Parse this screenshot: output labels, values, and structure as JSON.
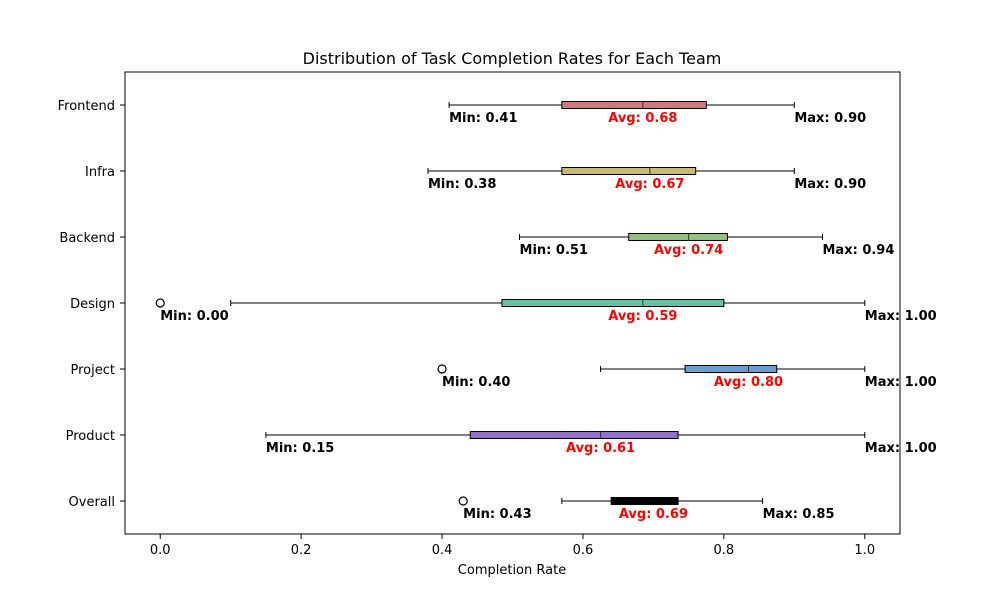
{
  "chart_data": {
    "type": "boxplot",
    "orientation": "horizontal",
    "title": "Distribution of Task Completion Rates for Each Team",
    "xlabel": "Completion Rate",
    "ylabel": "",
    "xlim": [
      -0.05,
      1.05
    ],
    "xticks": [
      "0.0",
      "0.2",
      "0.4",
      "0.6",
      "0.8",
      "1.0"
    ],
    "grid": false,
    "categories": [
      "Frontend",
      "Infra",
      "Backend",
      "Design",
      "Project",
      "Product",
      "Overall"
    ],
    "series": [
      {
        "category": "Frontend",
        "color": "#cd7b7b",
        "whisker_low": 0.41,
        "q1": 0.57,
        "median": 0.685,
        "q3": 0.775,
        "whisker_high": 0.9,
        "outliers": [],
        "min_label": "Min: 0.41",
        "avg_label": "Avg: 0.68",
        "max_label": "Max: 0.90"
      },
      {
        "category": "Infra",
        "color": "#c9b978",
        "whisker_low": 0.38,
        "q1": 0.57,
        "median": 0.695,
        "q3": 0.76,
        "whisker_high": 0.9,
        "outliers": [],
        "min_label": "Min: 0.38",
        "avg_label": "Avg: 0.67",
        "max_label": "Max: 0.90"
      },
      {
        "category": "Backend",
        "color": "#8fc47a",
        "whisker_low": 0.51,
        "q1": 0.665,
        "median": 0.75,
        "q3": 0.805,
        "whisker_high": 0.94,
        "outliers": [],
        "min_label": "Min: 0.51",
        "avg_label": "Avg: 0.74",
        "max_label": "Max: 0.94"
      },
      {
        "category": "Design",
        "color": "#66c2a5",
        "whisker_low": 0.1,
        "q1": 0.485,
        "median": 0.685,
        "q3": 0.8,
        "whisker_high": 1.0,
        "outliers": [
          0.0
        ],
        "min_label": "Min: 0.00",
        "avg_label": "Avg: 0.59",
        "max_label": "Max: 1.00"
      },
      {
        "category": "Project",
        "color": "#6a9dd0",
        "whisker_low": 0.625,
        "q1": 0.745,
        "median": 0.835,
        "q3": 0.875,
        "whisker_high": 1.0,
        "outliers": [
          0.4
        ],
        "min_label": "Min: 0.40",
        "avg_label": "Avg: 0.80",
        "max_label": "Max: 1.00"
      },
      {
        "category": "Product",
        "color": "#9370cc",
        "whisker_low": 0.15,
        "q1": 0.44,
        "median": 0.625,
        "q3": 0.735,
        "whisker_high": 1.0,
        "outliers": [],
        "min_label": "Min: 0.15",
        "avg_label": "Avg: 0.61",
        "max_label": "Max: 1.00"
      },
      {
        "category": "Overall",
        "color": "#000000",
        "whisker_low": 0.57,
        "q1": 0.64,
        "median": 0.7,
        "q3": 0.735,
        "whisker_high": 0.855,
        "outliers": [
          0.43
        ],
        "min_label": "Min: 0.43",
        "avg_label": "Avg: 0.69",
        "max_label": "Max: 0.85"
      }
    ],
    "annotation_colors": {
      "min": "#000000",
      "avg": "#ff0000",
      "max": "#000000"
    }
  }
}
